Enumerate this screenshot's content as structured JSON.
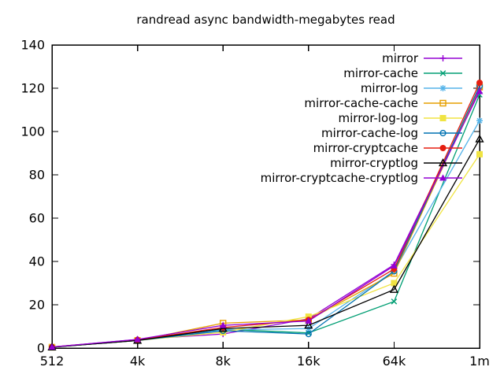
{
  "window": {
    "background": "#ffffff",
    "text_color": "#000000"
  },
  "chart_data": {
    "type": "line",
    "title": "randread async bandwidth-megabytes read",
    "xlabel": "",
    "ylabel": "",
    "categories": [
      "512",
      "4k",
      "8k",
      "16k",
      "64k",
      "1m"
    ],
    "ylim": [
      0,
      140
    ],
    "yticks": [
      0,
      20,
      40,
      60,
      80,
      100,
      120,
      140
    ],
    "ytick_labels": [
      "0",
      "20",
      "40",
      "60",
      "80",
      "100",
      "120",
      "140"
    ],
    "grid": false,
    "legend_position": "top-right-inside",
    "axis_color": "#000000",
    "series": [
      {
        "name": "mirror",
        "color": "#9400d3",
        "marker": "plus",
        "values": [
          0.5,
          4.0,
          6.5,
          13.5,
          38.5,
          119.5
        ]
      },
      {
        "name": "mirror-cache",
        "color": "#009e73",
        "marker": "cross",
        "values": [
          0.4,
          3.5,
          8.7,
          7.0,
          21.5,
          117.0
        ]
      },
      {
        "name": "mirror-log",
        "color": "#56b4e9",
        "marker": "asterisk",
        "values": [
          0.4,
          3.5,
          8.4,
          9.0,
          35.5,
          105.0
        ]
      },
      {
        "name": "mirror-cache-cache",
        "color": "#e69f00",
        "marker": "square-open",
        "values": [
          0.4,
          3.5,
          11.5,
          13.0,
          34.5,
          120.5
        ]
      },
      {
        "name": "mirror-log-log",
        "color": "#f0e442",
        "marker": "square-filled",
        "values": [
          0.4,
          3.5,
          7.3,
          14.5,
          30.0,
          89.5
        ]
      },
      {
        "name": "mirror-cache-log",
        "color": "#0072b2",
        "marker": "circle-open",
        "values": [
          0.4,
          3.5,
          8.0,
          6.5,
          35.5,
          121.0
        ]
      },
      {
        "name": "mirror-cryptcache",
        "color": "#e51e10",
        "marker": "circle-filled",
        "values": [
          0.5,
          3.8,
          9.5,
          13.0,
          36.5,
          122.5
        ]
      },
      {
        "name": "mirror-cryptlog",
        "color": "#000000",
        "marker": "triangle-open",
        "values": [
          0.4,
          3.5,
          9.0,
          10.5,
          27.0,
          96.5
        ]
      },
      {
        "name": "mirror-cryptcache-cryptlog",
        "color": "#9400d3",
        "marker": "triangle-filled",
        "values": [
          0.5,
          4.0,
          10.5,
          12.5,
          38.0,
          118.5
        ]
      }
    ]
  }
}
